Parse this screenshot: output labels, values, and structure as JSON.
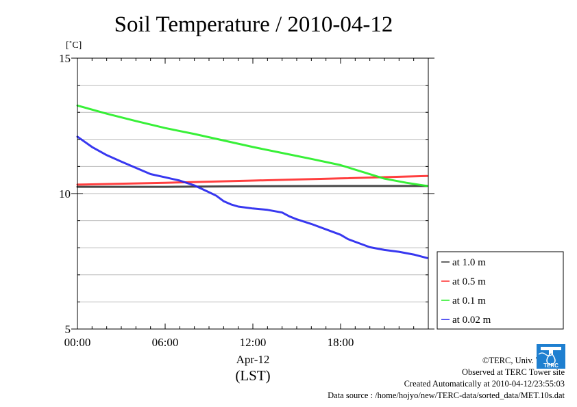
{
  "chart_data": {
    "type": "line",
    "title": "Soil Temperature / 2010-04-12",
    "ylabel": "[˚C]",
    "xlabel": "(LST)",
    "x_date_label": "Apr-12",
    "xlim": [
      "00:00",
      "24:00"
    ],
    "ylim": [
      5,
      15
    ],
    "x_ticks": [
      "00:00",
      "06:00",
      "12:00",
      "18:00"
    ],
    "y_ticks": [
      5,
      10,
      15
    ],
    "y_minor_step": 1,
    "grid": true,
    "legend_position": "outside-right-bottom",
    "series": [
      {
        "name": "at 1.0 m",
        "color": "#333333",
        "x": [
          "00:00",
          "06:00",
          "12:00",
          "18:00",
          "23:55"
        ],
        "y": [
          10.25,
          10.25,
          10.27,
          10.28,
          10.28
        ]
      },
      {
        "name": "at 0.5 m",
        "color": "#ff2a2a",
        "x": [
          "00:00",
          "06:00",
          "12:00",
          "18:00",
          "23:55"
        ],
        "y": [
          10.33,
          10.4,
          10.48,
          10.56,
          10.65
        ]
      },
      {
        "name": "at 0.1 m",
        "color": "#22ee22",
        "x": [
          "00:00",
          "02:00",
          "04:00",
          "06:00",
          "08:00",
          "10:00",
          "12:00",
          "14:00",
          "16:00",
          "18:00",
          "19:30",
          "21:00",
          "22:30",
          "23:55"
        ],
        "y": [
          13.25,
          12.95,
          12.68,
          12.42,
          12.2,
          11.96,
          11.72,
          11.5,
          11.28,
          11.05,
          10.8,
          10.55,
          10.4,
          10.28
        ]
      },
      {
        "name": "at 0.02 m",
        "color": "#2222ee",
        "x": [
          "00:00",
          "01:00",
          "02:00",
          "03:00",
          "04:00",
          "05:00",
          "06:00",
          "07:00",
          "08:00",
          "09:00",
          "09:30",
          "10:00",
          "10:30",
          "11:00",
          "12:00",
          "13:00",
          "14:00",
          "14:30",
          "15:00",
          "16:00",
          "17:00",
          "18:00",
          "18:30",
          "19:00",
          "20:00",
          "21:00",
          "22:00",
          "23:00",
          "23:55"
        ],
        "y": [
          12.1,
          11.72,
          11.42,
          11.18,
          10.95,
          10.72,
          10.6,
          10.48,
          10.3,
          10.05,
          9.92,
          9.72,
          9.6,
          9.52,
          9.45,
          9.4,
          9.3,
          9.16,
          9.05,
          8.88,
          8.68,
          8.48,
          8.32,
          8.22,
          8.02,
          7.92,
          7.85,
          7.75,
          7.62
        ]
      }
    ]
  },
  "footer": {
    "copyright": "©TERC, Univ. Tsukuba",
    "site": "Observed at TERC Tower site",
    "created": "Created Automatically at 2010-04-12/23:55:03",
    "source": "Data source : /home/hojyo/new/TERC-data/sorted_data/MET.10s.dat",
    "logo_text": "TERC"
  }
}
